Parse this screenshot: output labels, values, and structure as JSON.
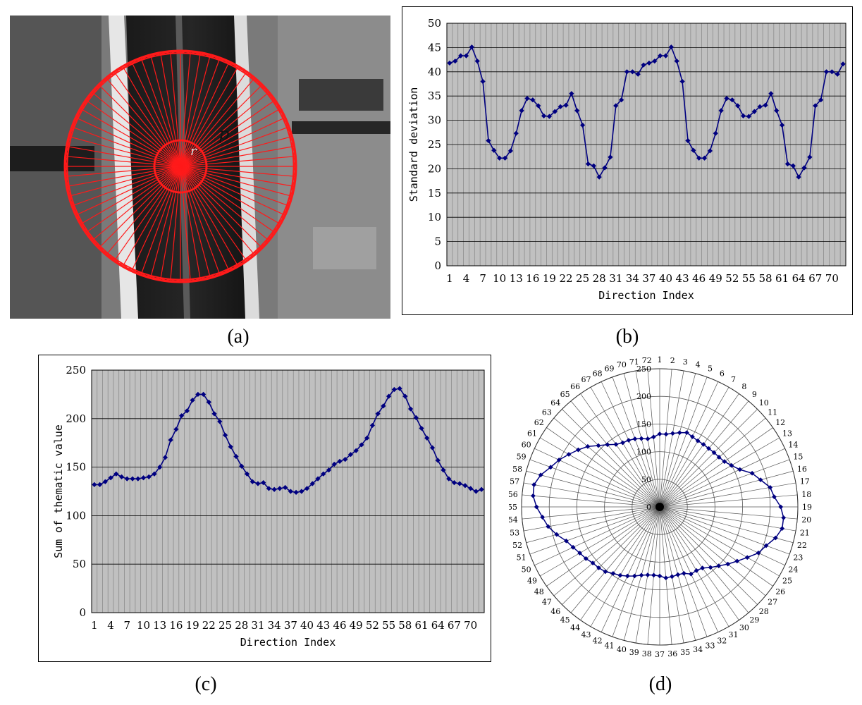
{
  "captions": {
    "a": "(a)",
    "b": "(b)",
    "c": "(c)",
    "d": "(d)"
  },
  "panel_a": {
    "label_p": "p",
    "label_r": "r"
  },
  "colors": {
    "series": "#000080",
    "plot_bg": "#c0c0c0",
    "grid": "#8c8c8c",
    "image_lines": "#ff1a1a"
  },
  "chart_data": [
    {
      "id": "b",
      "type": "line",
      "title": "",
      "xlabel": "Direction Index",
      "ylabel": "Standard deviation",
      "ylim": [
        0,
        50
      ],
      "yticks": [
        0,
        5,
        10,
        15,
        20,
        25,
        30,
        35,
        40,
        45,
        50
      ],
      "xtick_labels": [
        "1",
        "4",
        "7",
        "10",
        "13",
        "16",
        "19",
        "22",
        "25",
        "28",
        "31",
        "34",
        "37",
        "40",
        "43",
        "46",
        "49",
        "52",
        "55",
        "58",
        "61",
        "64",
        "67",
        "70"
      ],
      "x": [
        1,
        2,
        3,
        4,
        5,
        6,
        7,
        8,
        9,
        10,
        11,
        12,
        13,
        14,
        15,
        16,
        17,
        18,
        19,
        20,
        21,
        22,
        23,
        24,
        25,
        26,
        27,
        28,
        29,
        30,
        31,
        32,
        33,
        34,
        35,
        36,
        37,
        38,
        39,
        40,
        41,
        42,
        43,
        44,
        45,
        46,
        47,
        48,
        49,
        50,
        51,
        52,
        53,
        54,
        55,
        56,
        57,
        58,
        59,
        60,
        61,
        62,
        63,
        64,
        65,
        66,
        67,
        68,
        69,
        70,
        71,
        72
      ],
      "values": [
        41.8,
        42.2,
        43.3,
        43.3,
        45.1,
        42.2,
        38.0,
        25.8,
        23.8,
        22.2,
        22.2,
        23.7,
        27.3,
        32.0,
        34.5,
        34.2,
        33.0,
        30.9,
        30.8,
        31.8,
        32.8,
        33.1,
        35.5,
        32.0,
        29.0,
        21.0,
        20.6,
        18.3,
        20.2,
        22.4,
        33.0,
        34.2,
        40.0,
        40.0,
        39.5,
        41.4,
        41.8,
        42.2,
        43.3,
        43.3,
        45.1,
        42.2,
        38.0,
        25.8,
        23.8,
        22.2,
        22.2,
        23.7,
        27.3,
        32.0,
        34.5,
        34.2,
        33.0,
        30.9,
        30.8,
        31.8,
        32.8,
        33.1,
        35.5,
        32.0,
        29.0,
        21.0,
        20.6,
        18.3,
        20.2,
        22.4,
        33.0,
        34.2,
        40.0,
        40.0,
        39.5,
        41.6
      ]
    },
    {
      "id": "c",
      "type": "line",
      "title": "",
      "xlabel": "Direction Index",
      "ylabel": "Sum of thematic value",
      "ylim": [
        0,
        250
      ],
      "yticks": [
        0,
        50,
        100,
        150,
        200,
        250
      ],
      "xtick_labels": [
        "1",
        "4",
        "7",
        "10",
        "13",
        "16",
        "19",
        "22",
        "25",
        "28",
        "31",
        "34",
        "37",
        "40",
        "43",
        "46",
        "49",
        "52",
        "55",
        "58",
        "61",
        "64",
        "67",
        "70"
      ],
      "x": [
        1,
        2,
        3,
        4,
        5,
        6,
        7,
        8,
        9,
        10,
        11,
        12,
        13,
        14,
        15,
        16,
        17,
        18,
        19,
        20,
        21,
        22,
        23,
        24,
        25,
        26,
        27,
        28,
        29,
        30,
        31,
        32,
        33,
        34,
        35,
        36,
        37,
        38,
        39,
        40,
        41,
        42,
        43,
        44,
        45,
        46,
        47,
        48,
        49,
        50,
        51,
        52,
        53,
        54,
        55,
        56,
        57,
        58,
        59,
        60,
        61,
        62,
        63,
        64,
        65,
        66,
        67,
        68,
        69,
        70,
        71,
        72
      ],
      "values": [
        132,
        132,
        135,
        139,
        143,
        140,
        138,
        138,
        138,
        139,
        140,
        143,
        150,
        160,
        178,
        189,
        203,
        208,
        219,
        225,
        225,
        217,
        205,
        197,
        183,
        171,
        161,
        151,
        143,
        135,
        133,
        134,
        128,
        127,
        128,
        129,
        125,
        124,
        125,
        128,
        133,
        138,
        143,
        147,
        153,
        156,
        158,
        163,
        167,
        173,
        180,
        193,
        205,
        213,
        223,
        230,
        231,
        223,
        210,
        201,
        190,
        180,
        170,
        157,
        147,
        138,
        134,
        133,
        131,
        128,
        125,
        127
      ]
    },
    {
      "id": "d",
      "type": "polar_line",
      "title": "",
      "rlim": [
        0,
        250
      ],
      "rticks": [
        0,
        50,
        100,
        150,
        200,
        250
      ],
      "angle_labels": [
        "1",
        "2",
        "3",
        "4",
        "5",
        "6",
        "7",
        "8",
        "9",
        "10",
        "11",
        "12",
        "13",
        "14",
        "15",
        "16",
        "17",
        "18",
        "19",
        "20",
        "21",
        "22",
        "23",
        "24",
        "25",
        "26",
        "27",
        "28",
        "29",
        "30",
        "31",
        "32",
        "33",
        "34",
        "35",
        "36",
        "37",
        "38",
        "39",
        "40",
        "41",
        "42",
        "43",
        "44",
        "45",
        "46",
        "47",
        "48",
        "49",
        "50",
        "51",
        "52",
        "53",
        "54",
        "55",
        "56",
        "57",
        "58",
        "59",
        "60",
        "61",
        "62",
        "63",
        "64",
        "65",
        "66",
        "67",
        "68",
        "69",
        "70",
        "71",
        "72"
      ],
      "values": [
        132,
        132,
        135,
        139,
        143,
        140,
        138,
        138,
        138,
        139,
        140,
        143,
        150,
        160,
        178,
        189,
        203,
        208,
        219,
        225,
        225,
        217,
        205,
        197,
        183,
        171,
        161,
        151,
        143,
        135,
        133,
        134,
        128,
        127,
        128,
        129,
        125,
        124,
        125,
        128,
        133,
        138,
        143,
        147,
        153,
        156,
        158,
        163,
        167,
        173,
        180,
        193,
        205,
        213,
        223,
        230,
        231,
        223,
        210,
        201,
        190,
        180,
        170,
        157,
        147,
        138,
        134,
        133,
        131,
        128,
        125,
        127
      ]
    }
  ]
}
